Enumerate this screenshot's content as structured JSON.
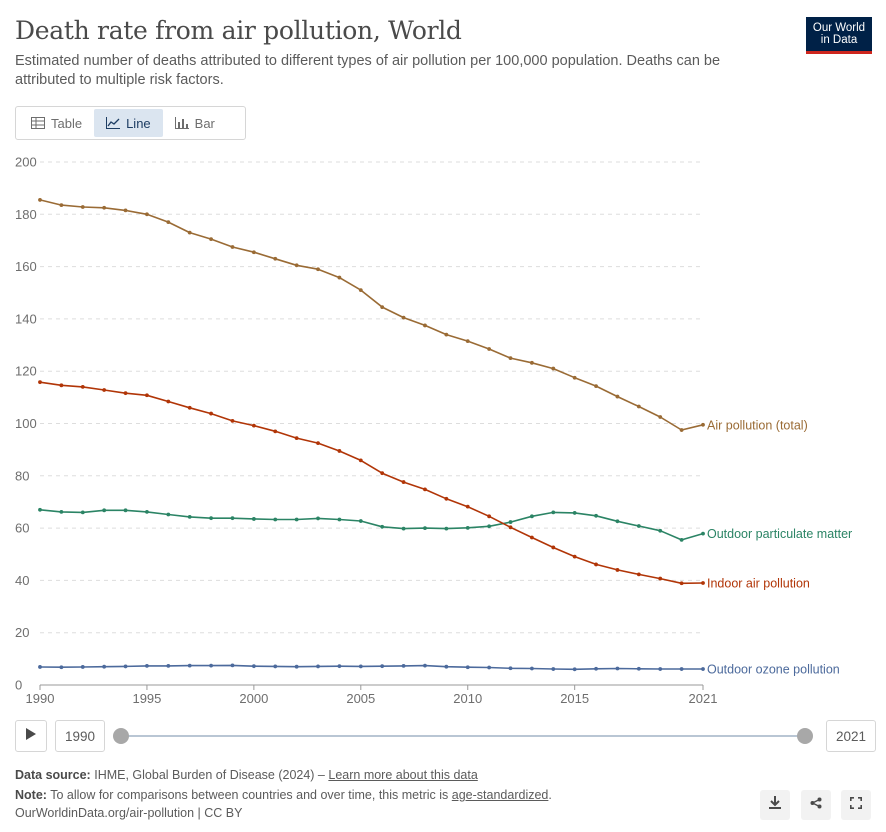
{
  "header": {
    "title": "Death rate from air pollution, World",
    "subtitle": "Estimated number of deaths attributed to different types of air pollution per 100,000 population. Deaths can be attributed to multiple risk factors.",
    "logo_line1": "Our World",
    "logo_line2": "in Data"
  },
  "tabs": [
    {
      "label": "Table",
      "icon": "table-icon",
      "active": false
    },
    {
      "label": "Line",
      "icon": "line-chart-icon",
      "active": true
    },
    {
      "label": "Bar",
      "icon": "bar-chart-icon",
      "active": false
    }
  ],
  "timeline": {
    "start_year": "1990",
    "end_year": "2021",
    "play_icon": "play-icon"
  },
  "footer": {
    "source_label": "Data source:",
    "source_text": "IHME, Global Burden of Disease (2024) –",
    "source_link": "Learn more about this data",
    "note_label": "Note:",
    "note_text": "To allow for comparisons between countries and over time, this metric is",
    "note_link": "age-standardized",
    "note_end": ".",
    "url": "OurWorldinData.org/air-pollution | CC BY"
  },
  "actions": [
    "download-icon",
    "share-icon",
    "fullscreen-icon"
  ],
  "chart_data": {
    "type": "line",
    "title": "",
    "xlabel": "",
    "ylabel": "",
    "xlim": [
      1990,
      2021
    ],
    "ylim": [
      0,
      200
    ],
    "y_ticks": [
      0,
      20,
      40,
      60,
      80,
      100,
      120,
      140,
      160,
      180,
      200
    ],
    "x_ticks": [
      1990,
      1995,
      2000,
      2005,
      2010,
      2015,
      2021
    ],
    "grid": "horizontal dashed",
    "legend": "inline labels at line ends",
    "x": [
      1990,
      1991,
      1992,
      1993,
      1994,
      1995,
      1996,
      1997,
      1998,
      1999,
      2000,
      2001,
      2002,
      2003,
      2004,
      2005,
      2006,
      2007,
      2008,
      2009,
      2010,
      2011,
      2012,
      2013,
      2014,
      2015,
      2016,
      2017,
      2018,
      2019,
      2020,
      2021
    ],
    "series": [
      {
        "name": "Air pollution (total)",
        "color": "#9a6b35",
        "values": [
          185.5,
          183.5,
          182.8,
          182.5,
          181.5,
          180,
          177,
          173,
          170.5,
          167.5,
          165.5,
          163,
          160.5,
          159,
          155.8,
          151,
          144.5,
          140.5,
          137.5,
          134,
          131.5,
          128.5,
          125,
          123.2,
          121,
          117.5,
          114.3,
          110.3,
          106.5,
          102.5,
          97.5,
          99.5
        ]
      },
      {
        "name": "Outdoor particulate matter",
        "color": "#2b8465",
        "values": [
          67,
          66.2,
          66,
          66.8,
          66.8,
          66.2,
          65.2,
          64.3,
          63.8,
          63.8,
          63.5,
          63.3,
          63.3,
          63.7,
          63.3,
          62.7,
          60.5,
          59.8,
          60,
          59.8,
          60.1,
          60.7,
          62.3,
          64.5,
          66,
          65.8,
          64.7,
          62.6,
          60.8,
          59,
          55.5,
          57.9
        ]
      },
      {
        "name": "Indoor air pollution",
        "color": "#b13507",
        "values": [
          115.8,
          114.6,
          114,
          112.8,
          111.6,
          110.8,
          108.4,
          106,
          103.8,
          101,
          99.2,
          97,
          94.4,
          92.5,
          89.5,
          85.9,
          81,
          77.6,
          74.8,
          71.2,
          68.2,
          64.5,
          60.3,
          56.4,
          52.6,
          49.1,
          46.1,
          44,
          42.3,
          40.7,
          38.9,
          39
        ]
      },
      {
        "name": "Outdoor ozone pollution",
        "color": "#4c6a9c",
        "values": [
          6.9,
          6.8,
          6.9,
          7,
          7.1,
          7.3,
          7.3,
          7.4,
          7.4,
          7.5,
          7.2,
          7.1,
          7,
          7.1,
          7.2,
          7.1,
          7.2,
          7.3,
          7.4,
          7,
          6.8,
          6.7,
          6.4,
          6.3,
          6.1,
          6,
          6.2,
          6.3,
          6.2,
          6.1,
          6.1,
          6.1
        ]
      }
    ]
  }
}
